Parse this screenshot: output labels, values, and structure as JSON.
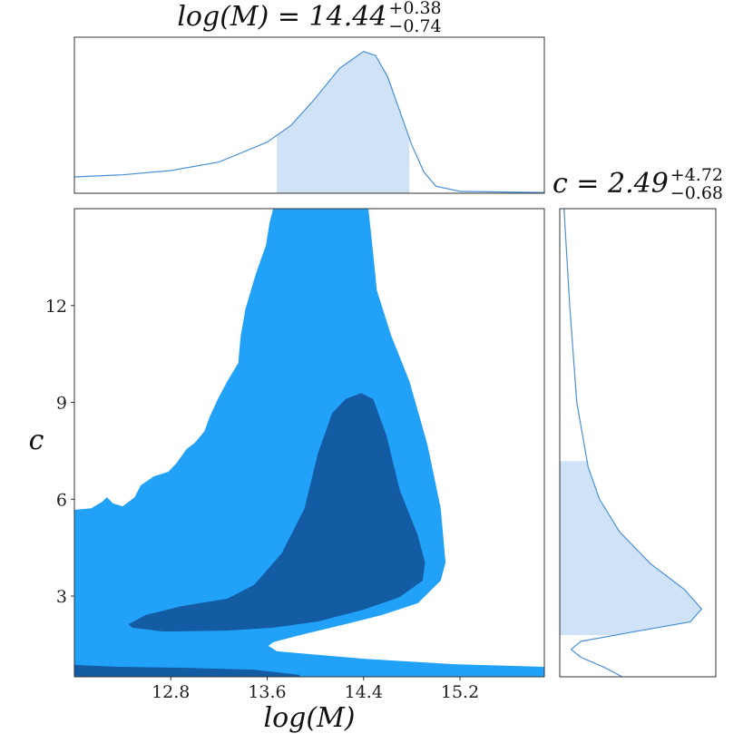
{
  "chart_data": [
    {
      "type": "density",
      "orientation": "vertical",
      "title": {
        "main": "log(M) = 14.44",
        "plus": "+0.38",
        "minus": "−0.74"
      },
      "x": [
        12.0,
        12.4,
        12.8,
        13.2,
        13.6,
        13.8,
        14.0,
        14.2,
        14.4,
        14.5,
        14.6,
        14.8,
        14.9,
        15.0,
        15.2,
        15.9
      ],
      "values": [
        0.115,
        0.13,
        0.16,
        0.22,
        0.36,
        0.48,
        0.67,
        0.88,
        1.0,
        0.97,
        0.82,
        0.34,
        0.15,
        0.05,
        0.013,
        0.005
      ],
      "xlim": [
        12.0,
        15.9
      ],
      "ylim": [
        0,
        1.1
      ],
      "shade": [
        13.68,
        14.78
      ],
      "color": "#4a90d9",
      "shade_color": "#cfe2f6"
    },
    {
      "type": "contour",
      "xlabel": "log(M)",
      "ylabel": "c",
      "xlim": [
        12.0,
        15.9
      ],
      "ylim": [
        0.5,
        15.0
      ],
      "xticks": [
        12.8,
        13.6,
        14.4,
        15.2
      ],
      "yticks": [
        3,
        6,
        9,
        12
      ],
      "series": [
        {
          "color": "#22a1f9",
          "x": [
            12.0,
            12.14,
            12.23,
            12.27,
            12.32,
            12.4,
            12.5,
            12.55,
            12.66,
            12.78,
            12.85,
            12.93,
            13.0,
            13.08,
            13.12,
            13.19,
            13.27,
            13.36,
            13.38,
            13.42,
            13.51,
            13.59,
            13.62,
            13.65,
            14.44,
            14.48,
            14.51,
            14.63,
            14.78,
            14.93,
            15.04,
            15.08,
            15.04,
            14.85,
            14.55,
            14.25,
            13.87,
            13.65,
            13.61,
            13.68,
            14.4,
            15.15,
            15.9,
            15.9,
            12.0
          ],
          "y": [
            5.67,
            5.72,
            5.92,
            6.06,
            5.87,
            5.78,
            6.06,
            6.43,
            6.71,
            6.85,
            7.13,
            7.55,
            7.75,
            8.11,
            8.53,
            9.1,
            9.66,
            10.22,
            11.06,
            11.9,
            13.03,
            13.87,
            14.57,
            15.0,
            15.0,
            13.59,
            12.47,
            11.06,
            9.66,
            7.69,
            5.72,
            4.04,
            3.48,
            2.78,
            2.41,
            2.13,
            1.79,
            1.57,
            1.46,
            1.29,
            1.06,
            0.89,
            0.81,
            0.5,
            0.5
          ]
        },
        {
          "color": "#135ba3",
          "x": [
            12.45,
            12.59,
            12.89,
            13.27,
            13.49,
            13.72,
            13.91,
            14.02,
            14.14,
            14.25,
            14.38,
            14.48,
            14.59,
            14.7,
            14.85,
            14.91,
            14.89,
            14.7,
            14.4,
            14.02,
            13.65,
            13.27,
            12.74,
            12.48
          ],
          "y": [
            2.13,
            2.41,
            2.69,
            2.92,
            3.34,
            4.32,
            5.72,
            7.41,
            8.67,
            9.1,
            9.29,
            9.1,
            7.97,
            6.29,
            4.88,
            4.04,
            3.48,
            2.97,
            2.58,
            2.21,
            2.02,
            1.93,
            1.9,
            2.02
          ]
        },
        {
          "color": "#135ba3",
          "x": [
            12.0,
            12.36,
            12.89,
            13.49,
            13.87,
            13.87,
            12.0
          ],
          "y": [
            0.87,
            0.81,
            0.78,
            0.72,
            0.56,
            0.5,
            0.5
          ]
        }
      ]
    },
    {
      "type": "density",
      "orientation": "horizontal",
      "title": {
        "main": "c = 2.49",
        "plus": "+4.72",
        "minus": "−0.68"
      },
      "y": [
        15.0,
        12.0,
        9.0,
        7.0,
        6.0,
        5.0,
        4.0,
        3.2,
        2.6,
        2.2,
        1.9,
        1.6,
        1.35,
        1.1,
        0.8,
        0.5
      ],
      "values": [
        0.03,
        0.07,
        0.12,
        0.2,
        0.28,
        0.42,
        0.64,
        0.88,
        1.0,
        0.92,
        0.53,
        0.15,
        0.08,
        0.15,
        0.31,
        0.44
      ],
      "ylim": [
        0.5,
        15.0
      ],
      "xlim": [
        0,
        1.1
      ],
      "shade": [
        1.79,
        7.18
      ],
      "color": "#4a90d9",
      "shade_color": "#cfe2f6"
    }
  ]
}
